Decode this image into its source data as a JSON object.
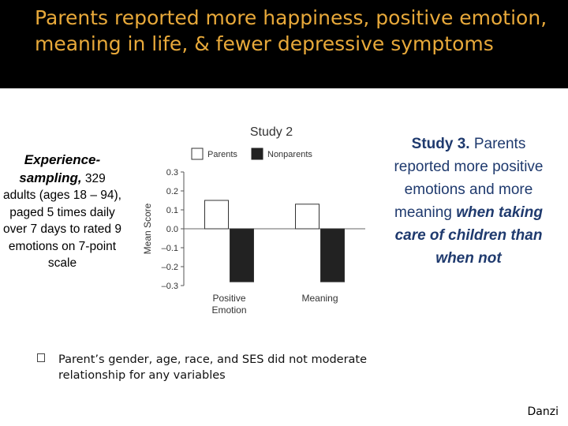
{
  "slide": {
    "title": "Parents  reported more happiness, positive emotion, meaning in life, & fewer depressive symptoms",
    "left_lead": "Experience-sampling,",
    "left_body": " 329 adults (ages 18 – 94), paged 5 times daily over 7 days to rated 9 emotions on 7-point scale",
    "right_study": "Study 3.",
    "right_plain": " Parents reported more positive emotions and more meaning ",
    "right_emph": "when taking care of children than when not",
    "bullet": "Parent’s gender, age, race, and SES did not moderate relationship for any variables",
    "footer": "Danzi",
    "colors": {
      "title_bg": "#000000",
      "title_text": "#e8a93a",
      "right_text": "#1f3a6e"
    }
  },
  "chart_data": {
    "type": "bar",
    "title": "Study 2",
    "ylabel": "Mean Score",
    "ylim": [
      -0.3,
      0.3
    ],
    "yticks": [
      "0.3",
      "0.2",
      "0.1",
      "0.0",
      "–0.1",
      "–0.2",
      "–0.3"
    ],
    "categories": [
      "Positive Emotion",
      "Meaning"
    ],
    "series": [
      {
        "name": "Parents",
        "color": "#ffffff",
        "values": [
          0.15,
          0.13
        ]
      },
      {
        "name": "Nonparents",
        "color": "#222222",
        "values": [
          -0.28,
          -0.28
        ]
      }
    ],
    "legend": "top"
  }
}
